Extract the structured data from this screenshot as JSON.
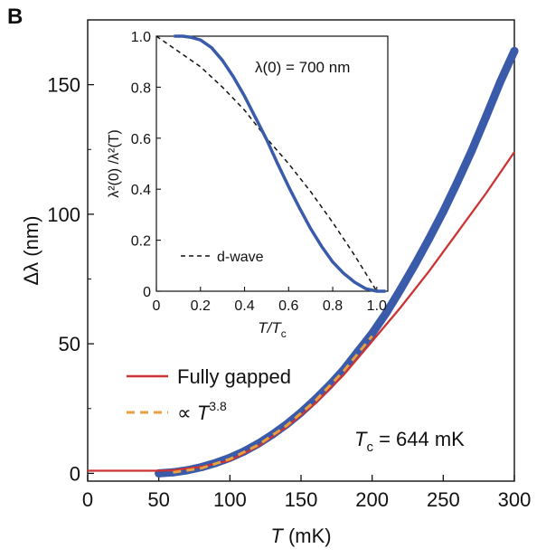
{
  "panel_label": "B",
  "chart_data": [
    {
      "type": "line",
      "name": "main",
      "xlabel_symbol": "T",
      "xlabel_unit": " (mK)",
      "ylabel": "Δλ (nm)",
      "xlim": [
        0,
        300
      ],
      "ylim": [
        -3,
        175
      ],
      "xticks": [
        0,
        50,
        100,
        150,
        200,
        250,
        300
      ],
      "yticks": [
        0,
        50,
        100,
        150
      ],
      "series": [
        {
          "name": "data",
          "color": "#3a5aaa",
          "style": "markers",
          "x": [
            50,
            60,
            70,
            80,
            90,
            100,
            110,
            120,
            130,
            140,
            150,
            160,
            170,
            180,
            190,
            200,
            210,
            220,
            230,
            240,
            250,
            260,
            270,
            280,
            290,
            300
          ],
          "y": [
            0,
            0.4,
            1.2,
            2.4,
            4.0,
            6.0,
            8.5,
            11.5,
            15.0,
            19.0,
            23.5,
            28.5,
            34.0,
            40.0,
            47.0,
            54.0,
            62.0,
            71.0,
            80.5,
            90.5,
            101.0,
            112.5,
            124.5,
            137.5,
            151.0,
            163.0
          ]
        },
        {
          "name": "Fully gapped",
          "color": "#cc3333",
          "style": "solid",
          "x": [
            0,
            50,
            60,
            80,
            100,
            120,
            140,
            160,
            180,
            200,
            220,
            240,
            260,
            280,
            300
          ],
          "y": [
            1.0,
            1.0,
            1.2,
            2.5,
            5.0,
            10.5,
            18.0,
            27.0,
            38.0,
            51.0,
            64.0,
            78.0,
            93.0,
            108.0,
            124.0
          ]
        },
        {
          "name": "∝ T^3.8",
          "color": "#e8a040",
          "style": "dashed",
          "x": [
            60,
            80,
            100,
            120,
            140,
            160,
            180,
            200
          ],
          "y": [
            0.4,
            2.0,
            5.5,
            11.0,
            18.5,
            28.0,
            39.5,
            53.0
          ]
        }
      ],
      "legend": [
        {
          "label": "Fully gapped",
          "color": "#cc3333",
          "style": "solid"
        },
        {
          "label_prefix": "∝ ",
          "label_symbol": "T",
          "label_exp": "3.8",
          "color": "#e8a040",
          "style": "dashed"
        }
      ],
      "annotation": {
        "symbol": "T",
        "sub": "c",
        "text": " = 644 mK"
      }
    },
    {
      "type": "line",
      "name": "inset",
      "xlabel": "T/T",
      "xlabel_sub": "c",
      "ylabel": "λ²(0) /λ²(T)",
      "xlim": [
        0,
        1.05
      ],
      "ylim": [
        0,
        1.0
      ],
      "xticks": [
        "0",
        "0.2",
        "0.4",
        "0.6",
        "0.8",
        "1.0"
      ],
      "xtick_values": [
        0,
        0.2,
        0.4,
        0.6,
        0.8,
        1.0
      ],
      "yticks": [
        "0",
        "0.2",
        "0.4",
        "0.6",
        "0.8",
        "1.0"
      ],
      "ytick_values": [
        0,
        0.2,
        0.4,
        0.6,
        0.8,
        1.0
      ],
      "annotation": "λ(0) = 700 nm",
      "series": [
        {
          "name": "data",
          "color": "#3a5aaa",
          "style": "solid",
          "x": [
            0.08,
            0.12,
            0.16,
            0.2,
            0.25,
            0.3,
            0.35,
            0.4,
            0.45,
            0.5,
            0.55,
            0.6,
            0.65,
            0.7,
            0.75,
            0.8,
            0.85,
            0.9,
            0.95,
            1.0,
            1.04
          ],
          "y": [
            1.0,
            1.0,
            0.995,
            0.985,
            0.955,
            0.905,
            0.84,
            0.765,
            0.68,
            0.595,
            0.5,
            0.41,
            0.325,
            0.245,
            0.175,
            0.115,
            0.07,
            0.035,
            0.01,
            0.0,
            0.0
          ]
        },
        {
          "name": "d-wave",
          "color": "#111111",
          "style": "dashed",
          "x": [
            0,
            0.1,
            0.2,
            0.3,
            0.4,
            0.5,
            0.6,
            0.7,
            0.8,
            0.9,
            1.0
          ],
          "y": [
            1.0,
            0.94,
            0.88,
            0.8,
            0.71,
            0.6,
            0.5,
            0.39,
            0.27,
            0.14,
            0.0
          ]
        }
      ],
      "legend": [
        {
          "label": "d-wave",
          "color": "#111111",
          "style": "dashed"
        }
      ]
    }
  ]
}
